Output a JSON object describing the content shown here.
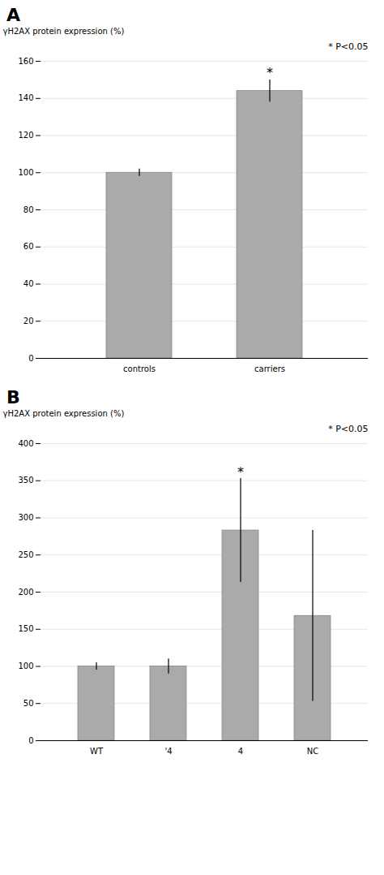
{
  "chart_data": [
    {
      "type": "bar",
      "title": "A",
      "categories": [
        "controls",
        "carriers"
      ],
      "values": [
        100,
        144
      ],
      "errors": [
        2,
        6
      ],
      "color": "#aaaaaa",
      "ylabel": "γH2AX protein expression (%)",
      "ylim": [
        0,
        160
      ],
      "yticks": [
        0,
        20,
        40,
        60,
        80,
        100,
        120,
        140,
        160
      ],
      "grid": true,
      "annotations": [
        {
          "text": "*",
          "category": "carriers"
        },
        {
          "text": "* P<0.05"
        }
      ]
    },
    {
      "type": "bar",
      "title": "B",
      "categories": [
        "WT",
        "'4",
        "4",
        "NC"
      ],
      "values": [
        100,
        100,
        283,
        168
      ],
      "errors": [
        5,
        10,
        70,
        115
      ],
      "color": "#aaaaaa",
      "ylabel": "γH2AX protein expression (%)",
      "ylim": [
        0,
        400
      ],
      "yticks": [
        0,
        50,
        100,
        150,
        200,
        250,
        300,
        350,
        400
      ],
      "grid": true,
      "annotations": [
        {
          "text": "*",
          "category": "4"
        },
        {
          "text": "* P<0.05"
        }
      ]
    }
  ]
}
